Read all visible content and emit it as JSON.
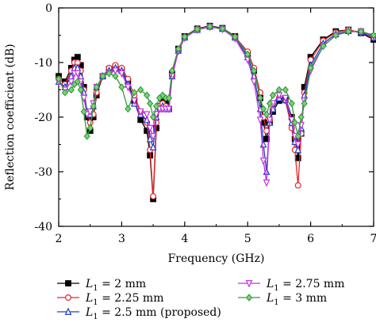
{
  "chart_data": {
    "type": "line",
    "xlabel": "Frequency (GHz)",
    "ylabel": "Reflection coefficient (dB)",
    "xlim": [
      2,
      7
    ],
    "ylim": [
      -40,
      0
    ],
    "x_ticks": [
      2,
      3,
      4,
      5,
      6,
      7
    ],
    "y_ticks": [
      0,
      -10,
      -20,
      -30,
      -40
    ],
    "x_tick_labels": [
      "2",
      "3",
      "4",
      "5",
      "6",
      "7"
    ],
    "y_tick_labels": [
      "0",
      "-10",
      "-20",
      "-30",
      "-40"
    ],
    "grid": false,
    "legend_position": "bottom",
    "series": [
      {
        "name": "L1 = 2 mm",
        "label_main": "L",
        "label_sub": "1",
        "label_rest": " = 2 mm",
        "color": "#000000",
        "marker": "square",
        "points": [
          [
            2.0,
            -12.5
          ],
          [
            2.1,
            -13.5
          ],
          [
            2.2,
            -11.0
          ],
          [
            2.25,
            -9.5
          ],
          [
            2.3,
            -9.0
          ],
          [
            2.35,
            -10.5
          ],
          [
            2.4,
            -14.5
          ],
          [
            2.45,
            -20.0
          ],
          [
            2.5,
            -22.5
          ],
          [
            2.55,
            -20.0
          ],
          [
            2.6,
            -16.0
          ],
          [
            2.7,
            -12.5
          ],
          [
            2.8,
            -11.2
          ],
          [
            2.9,
            -10.8
          ],
          [
            3.0,
            -11.5
          ],
          [
            3.1,
            -13.5
          ],
          [
            3.2,
            -17.0
          ],
          [
            3.3,
            -20.5
          ],
          [
            3.4,
            -22.5
          ],
          [
            3.45,
            -27.0
          ],
          [
            3.5,
            -35.0
          ],
          [
            3.55,
            -22.0
          ],
          [
            3.6,
            -18.0
          ],
          [
            3.65,
            -17.0
          ],
          [
            3.7,
            -17.5
          ],
          [
            3.75,
            -18.5
          ],
          [
            3.8,
            -12.0
          ],
          [
            3.9,
            -7.5
          ],
          [
            4.0,
            -5.2
          ],
          [
            4.2,
            -3.8
          ],
          [
            4.4,
            -3.3
          ],
          [
            4.6,
            -3.7
          ],
          [
            4.8,
            -5.2
          ],
          [
            5.0,
            -8.5
          ],
          [
            5.1,
            -11.5
          ],
          [
            5.2,
            -16.5
          ],
          [
            5.25,
            -21.0
          ],
          [
            5.3,
            -24.0
          ],
          [
            5.35,
            -21.0
          ],
          [
            5.4,
            -19.0
          ],
          [
            5.5,
            -17.0
          ],
          [
            5.6,
            -16.5
          ],
          [
            5.7,
            -20.0
          ],
          [
            5.75,
            -24.0
          ],
          [
            5.8,
            -27.5
          ],
          [
            5.85,
            -23.0
          ],
          [
            5.9,
            -14.5
          ],
          [
            6.0,
            -9.0
          ],
          [
            6.2,
            -5.8
          ],
          [
            6.4,
            -4.3
          ],
          [
            6.6,
            -4.0
          ],
          [
            6.8,
            -4.6
          ],
          [
            7.0,
            -5.8
          ]
        ]
      },
      {
        "name": "L1 = 2.25 mm",
        "label_main": "L",
        "label_sub": "1",
        "label_rest": " = 2.25 mm",
        "color": "#e8262a",
        "marker": "circle",
        "points": [
          [
            2.0,
            -13.0
          ],
          [
            2.1,
            -14.0
          ],
          [
            2.2,
            -11.5
          ],
          [
            2.25,
            -10.0
          ],
          [
            2.3,
            -10.0
          ],
          [
            2.35,
            -11.5
          ],
          [
            2.4,
            -15.0
          ],
          [
            2.45,
            -19.0
          ],
          [
            2.5,
            -21.0
          ],
          [
            2.55,
            -19.5
          ],
          [
            2.6,
            -15.5
          ],
          [
            2.7,
            -12.5
          ],
          [
            2.8,
            -11.0
          ],
          [
            2.9,
            -10.5
          ],
          [
            3.0,
            -11.0
          ],
          [
            3.1,
            -13.0
          ],
          [
            3.2,
            -16.0
          ],
          [
            3.3,
            -19.0
          ],
          [
            3.4,
            -21.0
          ],
          [
            3.45,
            -26.0
          ],
          [
            3.5,
            -34.5
          ],
          [
            3.55,
            -21.0
          ],
          [
            3.6,
            -18.0
          ],
          [
            3.65,
            -17.5
          ],
          [
            3.7,
            -18.0
          ],
          [
            3.75,
            -18.5
          ],
          [
            3.8,
            -12.5
          ],
          [
            3.9,
            -7.8
          ],
          [
            4.0,
            -5.3
          ],
          [
            4.2,
            -3.9
          ],
          [
            4.4,
            -3.4
          ],
          [
            4.6,
            -3.8
          ],
          [
            4.8,
            -5.3
          ],
          [
            5.0,
            -8.0
          ],
          [
            5.1,
            -11.0
          ],
          [
            5.2,
            -15.5
          ],
          [
            5.25,
            -20.0
          ],
          [
            5.3,
            -22.5
          ],
          [
            5.35,
            -20.5
          ],
          [
            5.4,
            -18.5
          ],
          [
            5.5,
            -16.5
          ],
          [
            5.6,
            -17.0
          ],
          [
            5.7,
            -22.0
          ],
          [
            5.75,
            -26.0
          ],
          [
            5.8,
            -32.5
          ],
          [
            5.85,
            -23.0
          ],
          [
            5.9,
            -15.5
          ],
          [
            6.0,
            -9.5
          ],
          [
            6.2,
            -6.0
          ],
          [
            6.4,
            -4.5
          ],
          [
            6.6,
            -4.0
          ],
          [
            6.8,
            -4.5
          ],
          [
            7.0,
            -5.5
          ]
        ]
      },
      {
        "name": "L1 = 2.5 mm (proposed)",
        "label_main": "L",
        "label_sub": "1",
        "label_rest": " = 2.5 mm (proposed)",
        "color": "#1f3fcc",
        "marker": "triangle",
        "points": [
          [
            2.0,
            -13.5
          ],
          [
            2.1,
            -14.5
          ],
          [
            2.2,
            -12.5
          ],
          [
            2.25,
            -11.0
          ],
          [
            2.3,
            -11.0
          ],
          [
            2.35,
            -12.5
          ],
          [
            2.4,
            -15.5
          ],
          [
            2.45,
            -19.0
          ],
          [
            2.5,
            -19.5
          ],
          [
            2.55,
            -18.0
          ],
          [
            2.6,
            -14.5
          ],
          [
            2.7,
            -12.5
          ],
          [
            2.8,
            -11.5
          ],
          [
            2.9,
            -11.0
          ],
          [
            3.0,
            -11.5
          ],
          [
            3.1,
            -14.0
          ],
          [
            3.2,
            -17.5
          ],
          [
            3.3,
            -19.5
          ],
          [
            3.4,
            -20.5
          ],
          [
            3.45,
            -24.0
          ],
          [
            3.5,
            -25.5
          ],
          [
            3.55,
            -20.0
          ],
          [
            3.6,
            -18.5
          ],
          [
            3.65,
            -18.0
          ],
          [
            3.7,
            -18.5
          ],
          [
            3.75,
            -18.5
          ],
          [
            3.8,
            -12.5
          ],
          [
            3.9,
            -7.8
          ],
          [
            4.0,
            -5.4
          ],
          [
            4.2,
            -4.0
          ],
          [
            4.4,
            -3.4
          ],
          [
            4.6,
            -3.8
          ],
          [
            4.8,
            -5.4
          ],
          [
            5.0,
            -9.0
          ],
          [
            5.1,
            -12.5
          ],
          [
            5.2,
            -18.5
          ],
          [
            5.25,
            -25.0
          ],
          [
            5.3,
            -30.0
          ],
          [
            5.35,
            -21.0
          ],
          [
            5.4,
            -18.5
          ],
          [
            5.5,
            -16.5
          ],
          [
            5.6,
            -16.8
          ],
          [
            5.7,
            -21.0
          ],
          [
            5.75,
            -24.5
          ],
          [
            5.8,
            -26.0
          ],
          [
            5.85,
            -22.0
          ],
          [
            5.9,
            -16.0
          ],
          [
            6.0,
            -10.5
          ],
          [
            6.2,
            -6.5
          ],
          [
            6.4,
            -4.8
          ],
          [
            6.6,
            -4.2
          ],
          [
            6.8,
            -4.4
          ],
          [
            7.0,
            -5.4
          ]
        ]
      },
      {
        "name": "L1 = 2.75 mm",
        "label_main": "L",
        "label_sub": "1",
        "label_rest": " = 2.75 mm",
        "color": "#c433e0",
        "marker": "inverted-triangle",
        "points": [
          [
            2.0,
            -13.5
          ],
          [
            2.1,
            -15.0
          ],
          [
            2.2,
            -13.5
          ],
          [
            2.25,
            -12.0
          ],
          [
            2.3,
            -12.0
          ],
          [
            2.35,
            -13.5
          ],
          [
            2.4,
            -16.5
          ],
          [
            2.45,
            -19.5
          ],
          [
            2.5,
            -19.0
          ],
          [
            2.55,
            -17.5
          ],
          [
            2.6,
            -14.5
          ],
          [
            2.7,
            -12.5
          ],
          [
            2.8,
            -12.0
          ],
          [
            2.9,
            -11.5
          ],
          [
            3.0,
            -12.0
          ],
          [
            3.1,
            -14.5
          ],
          [
            3.2,
            -17.0
          ],
          [
            3.3,
            -19.0
          ],
          [
            3.4,
            -19.5
          ],
          [
            3.45,
            -22.0
          ],
          [
            3.5,
            -23.5
          ],
          [
            3.55,
            -19.5
          ],
          [
            3.6,
            -18.5
          ],
          [
            3.65,
            -18.5
          ],
          [
            3.7,
            -18.5
          ],
          [
            3.75,
            -18.5
          ],
          [
            3.8,
            -12.5
          ],
          [
            3.9,
            -7.9
          ],
          [
            4.0,
            -5.5
          ],
          [
            4.2,
            -4.0
          ],
          [
            4.4,
            -3.5
          ],
          [
            4.6,
            -3.9
          ],
          [
            4.8,
            -5.6
          ],
          [
            5.0,
            -9.5
          ],
          [
            5.1,
            -13.5
          ],
          [
            5.2,
            -20.5
          ],
          [
            5.25,
            -28.0
          ],
          [
            5.3,
            -32.0
          ],
          [
            5.35,
            -20.5
          ],
          [
            5.4,
            -17.5
          ],
          [
            5.5,
            -16.0
          ],
          [
            5.6,
            -16.5
          ],
          [
            5.7,
            -20.5
          ],
          [
            5.75,
            -23.5
          ],
          [
            5.8,
            -25.0
          ],
          [
            5.85,
            -21.5
          ],
          [
            5.9,
            -17.0
          ],
          [
            6.0,
            -11.5
          ],
          [
            6.2,
            -7.0
          ],
          [
            6.4,
            -5.0
          ],
          [
            6.6,
            -4.4
          ],
          [
            6.8,
            -4.3
          ],
          [
            7.0,
            -5.2
          ]
        ]
      },
      {
        "name": "L1 = 3 mm",
        "label_main": "L",
        "label_sub": "1",
        "label_rest": " = 3 mm",
        "color": "#2f9b3a",
        "marker": "diamond",
        "points": [
          [
            2.0,
            -13.0
          ],
          [
            2.1,
            -15.5
          ],
          [
            2.2,
            -15.0
          ],
          [
            2.25,
            -14.0
          ],
          [
            2.3,
            -13.5
          ],
          [
            2.35,
            -15.0
          ],
          [
            2.4,
            -19.0
          ],
          [
            2.45,
            -23.5
          ],
          [
            2.5,
            -22.0
          ],
          [
            2.55,
            -18.0
          ],
          [
            2.6,
            -14.5
          ],
          [
            2.7,
            -12.5
          ],
          [
            2.8,
            -12.0
          ],
          [
            2.9,
            -12.5
          ],
          [
            3.0,
            -14.5
          ],
          [
            3.1,
            -18.5
          ],
          [
            3.2,
            -15.5
          ],
          [
            3.3,
            -15.0
          ],
          [
            3.4,
            -16.0
          ],
          [
            3.45,
            -17.5
          ],
          [
            3.5,
            -20.0
          ],
          [
            3.55,
            -18.0
          ],
          [
            3.6,
            -16.5
          ],
          [
            3.65,
            -16.0
          ],
          [
            3.7,
            -16.5
          ],
          [
            3.75,
            -16.5
          ],
          [
            3.8,
            -11.5
          ],
          [
            3.9,
            -7.5
          ],
          [
            4.0,
            -5.3
          ],
          [
            4.2,
            -3.9
          ],
          [
            4.4,
            -3.4
          ],
          [
            4.6,
            -3.8
          ],
          [
            4.8,
            -5.3
          ],
          [
            5.0,
            -8.5
          ],
          [
            5.1,
            -11.5
          ],
          [
            5.2,
            -16.5
          ],
          [
            5.25,
            -18.5
          ],
          [
            5.3,
            -19.5
          ],
          [
            5.35,
            -17.5
          ],
          [
            5.4,
            -16.0
          ],
          [
            5.5,
            -15.0
          ],
          [
            5.6,
            -15.0
          ],
          [
            5.7,
            -17.5
          ],
          [
            5.75,
            -21.0
          ],
          [
            5.8,
            -23.5
          ],
          [
            5.85,
            -20.0
          ],
          [
            5.9,
            -17.5
          ],
          [
            6.0,
            -11.0
          ],
          [
            6.2,
            -7.0
          ],
          [
            6.4,
            -5.0
          ],
          [
            6.6,
            -4.3
          ],
          [
            6.8,
            -4.3
          ],
          [
            7.0,
            -5.0
          ]
        ]
      }
    ]
  }
}
